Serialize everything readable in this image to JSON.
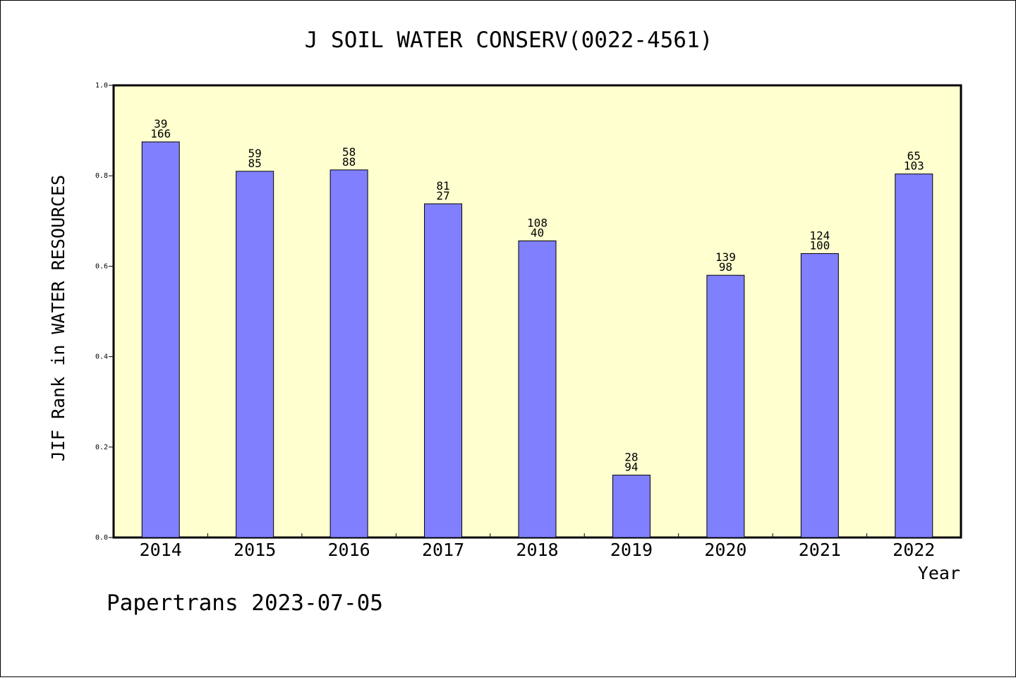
{
  "chart_data": {
    "type": "bar",
    "title": "J SOIL WATER CONSERV(0022-4561)",
    "xlabel": "Year",
    "ylabel": "JIF Rank in WATER RESOURCES",
    "footer": "Papertrans 2023-07-05",
    "ylim": [
      0,
      1.0
    ],
    "yticks": [
      "0.0",
      "0.2",
      "0.4",
      "0.6",
      "0.8",
      "1.0"
    ],
    "categories": [
      "2014",
      "2015",
      "2016",
      "2017",
      "2018",
      "2019",
      "2020",
      "2021",
      "2022"
    ],
    "values": [
      0.875,
      0.81,
      0.813,
      0.738,
      0.656,
      0.138,
      0.58,
      0.628,
      0.804
    ],
    "labels_top": [
      "39",
      "59",
      "58",
      "81",
      "108",
      "28",
      "139",
      "124",
      "65"
    ],
    "labels_bottom": [
      "166",
      "85",
      "88",
      "27",
      "40",
      "94",
      "98",
      "100",
      "103"
    ],
    "grid": false,
    "colors": {
      "bar": "#8080ff",
      "plot_background": "#ffffd0",
      "border": "#000000"
    }
  }
}
